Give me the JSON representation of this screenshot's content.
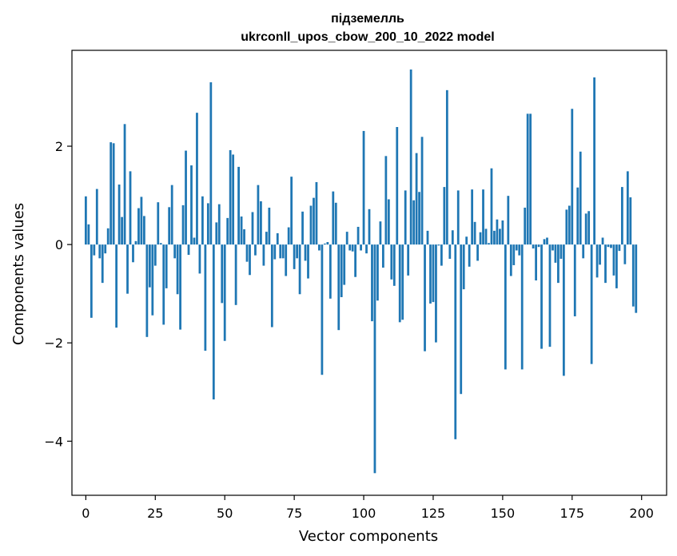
{
  "chart_data": {
    "type": "bar",
    "title": [
      "підземелль",
      "ukrconll_upos_cbow_200_10_2022 model"
    ],
    "xlabel": "Vector components",
    "ylabel": "Components values",
    "xlim": [
      -5,
      209
    ],
    "ylim": [
      -5.1,
      3.95
    ],
    "xticks": [
      0,
      25,
      50,
      75,
      100,
      125,
      150,
      175,
      200
    ],
    "yticks": [
      -4,
      -2,
      0,
      2
    ],
    "ytick_labels": [
      "−4",
      "−2",
      "0",
      "2"
    ],
    "color": "#1f77b4",
    "values": [
      0.98,
      0.41,
      -1.49,
      -0.22,
      1.13,
      -0.28,
      -0.78,
      -0.18,
      0.33,
      2.08,
      2.06,
      -1.69,
      1.22,
      0.56,
      2.45,
      -1.0,
      1.49,
      -0.36,
      0.07,
      0.74,
      0.97,
      0.58,
      -1.88,
      -0.87,
      -1.44,
      -0.43,
      0.86,
      0.03,
      -1.63,
      -0.89,
      0.76,
      1.21,
      -0.28,
      -1.01,
      -1.73,
      0.8,
      1.91,
      -0.21,
      1.61,
      0.14,
      2.68,
      -0.59,
      0.98,
      -2.16,
      0.84,
      3.3,
      -3.15,
      0.45,
      0.82,
      -1.19,
      -1.96,
      0.54,
      1.92,
      1.83,
      -1.23,
      1.58,
      0.57,
      0.31,
      -0.35,
      -0.62,
      0.66,
      -0.22,
      1.21,
      0.88,
      -0.43,
      0.26,
      0.75,
      -1.68,
      -0.3,
      0.23,
      -0.28,
      -0.28,
      -0.64,
      0.35,
      1.38,
      -0.5,
      -0.28,
      -1.01,
      0.67,
      -0.33,
      -0.69,
      0.79,
      0.95,
      1.27,
      -0.12,
      -2.65,
      0.02,
      0.05,
      -1.1,
      1.08,
      0.85,
      -1.74,
      -1.07,
      -0.82,
      0.26,
      -0.12,
      -0.14,
      -0.66,
      0.36,
      -0.12,
      2.31,
      -0.18,
      0.72,
      -1.56,
      -4.65,
      -1.14,
      0.47,
      -0.47,
      1.8,
      0.92,
      -0.71,
      -0.84,
      2.39,
      -1.58,
      -1.53,
      1.1,
      -0.63,
      3.56,
      0.9,
      1.86,
      1.07,
      2.19,
      -2.17,
      0.28,
      -1.2,
      -1.17,
      -1.99,
      -0.02,
      -0.43,
      1.17,
      3.14,
      -0.29,
      0.29,
      -3.96,
      1.1,
      -3.04,
      -0.91,
      0.16,
      -0.45,
      1.12,
      0.46,
      -0.33,
      0.25,
      1.12,
      0.32,
      0.03,
      1.55,
      0.28,
      0.51,
      0.32,
      0.49,
      -2.54,
      0.99,
      -0.64,
      -0.42,
      -0.12,
      -0.22,
      -2.54,
      0.75,
      2.66,
      2.66,
      -0.08,
      -0.73,
      -0.05,
      -2.12,
      0.11,
      0.14,
      -2.08,
      -0.12,
      -0.37,
      -0.78,
      -0.29,
      -2.67,
      0.71,
      0.79,
      2.76,
      -1.46,
      1.16,
      1.89,
      -0.28,
      0.63,
      0.68,
      -2.43,
      3.4,
      -0.67,
      -0.41,
      0.14,
      -0.78,
      -0.05,
      -0.07,
      -0.63,
      -0.89,
      -0.13,
      1.17,
      -0.4,
      1.49,
      0.96,
      -1.26,
      -1.39
    ]
  }
}
